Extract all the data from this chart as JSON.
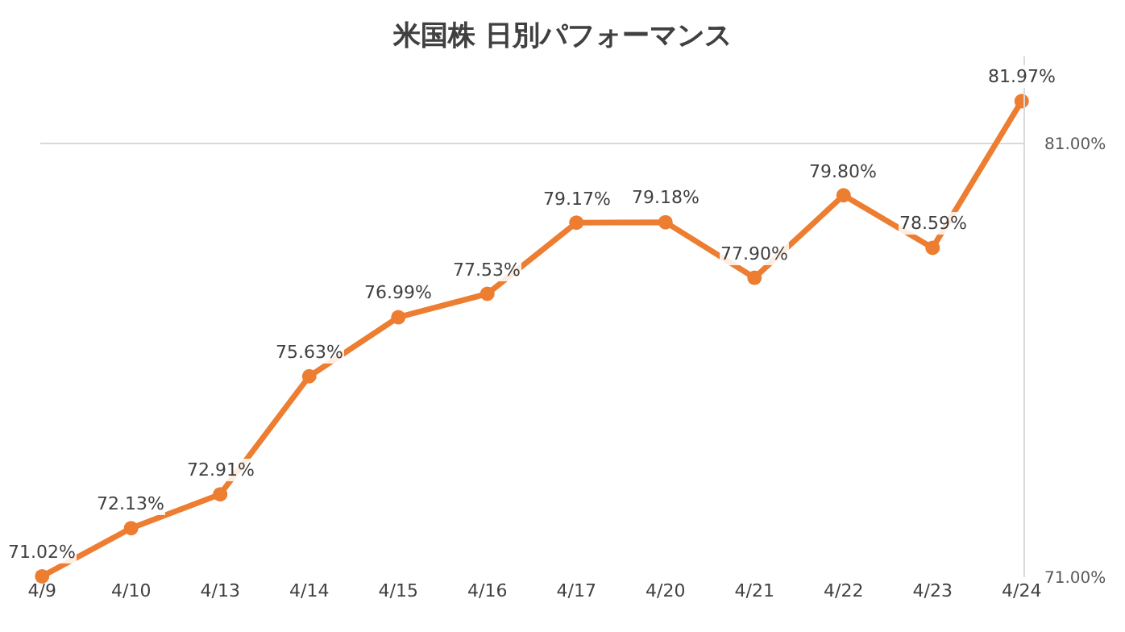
{
  "chart_data": {
    "type": "line",
    "title": "米国株 日別パフォーマンス",
    "categories": [
      "4/9",
      "4/10",
      "4/13",
      "4/14",
      "4/15",
      "4/16",
      "4/17",
      "4/20",
      "4/21",
      "4/22",
      "4/23",
      "4/24"
    ],
    "series": [
      {
        "color": "#ed7d31",
        "values": [
          71.02,
          72.13,
          72.91,
          75.63,
          76.99,
          77.53,
          79.17,
          79.18,
          77.9,
          79.8,
          78.59,
          81.97
        ],
        "value_labels": [
          "71.02%",
          "72.13%",
          "72.91%",
          "75.63%",
          "76.99%",
          "77.53%",
          "79.17%",
          "79.18%",
          "77.90%",
          "79.80%",
          "78.59%",
          "81.97%"
        ]
      }
    ],
    "ylim": [
      71,
      83
    ],
    "yticks": [
      {
        "value": 71,
        "label": "71.00%"
      },
      {
        "value": 81,
        "label": "81.00%"
      }
    ],
    "grid": "y",
    "marker": "circle",
    "line_style": "solid",
    "legend": false
  }
}
